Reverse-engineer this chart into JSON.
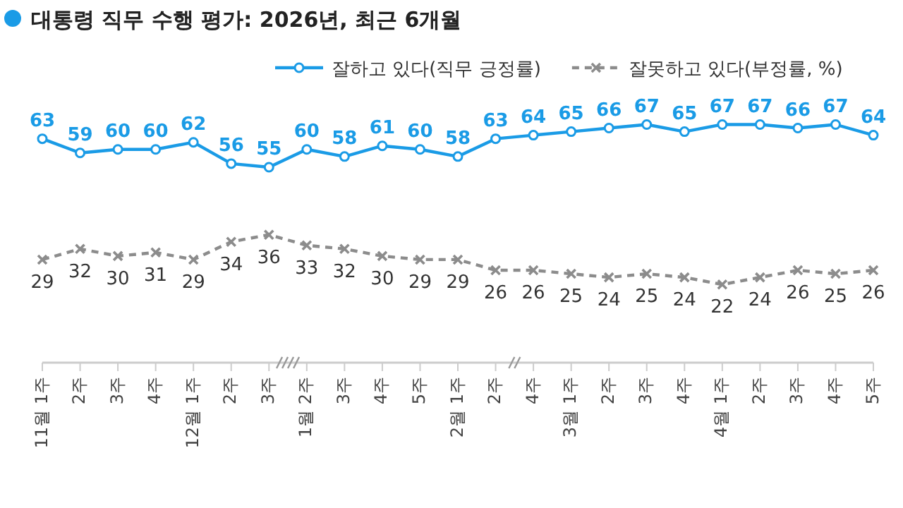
{
  "chart_data": {
    "type": "line",
    "title": "대통령 직무 수행 평가: 2026년, 최근 6개월",
    "categories": [
      "11월 1주",
      "2주",
      "3주",
      "4주",
      "12월 1주",
      "2주",
      "3주",
      "1월 2주",
      "3주",
      "4주",
      "5주",
      "2월 1주",
      "2주",
      "4주",
      "3월 1주",
      "2주",
      "3주",
      "4주",
      "4월 1주",
      "2주",
      "3주",
      "4주",
      "5주"
    ],
    "series": [
      {
        "name": "잘하고 있다(직무 긍정률)",
        "color": "#1a9be6",
        "marker": "circle",
        "line_style": "solid",
        "values": [
          63,
          59,
          60,
          60,
          62,
          56,
          55,
          60,
          58,
          61,
          60,
          58,
          63,
          64,
          65,
          66,
          67,
          65,
          67,
          67,
          66,
          67,
          64
        ]
      },
      {
        "name": "잘못하고 있다(부정률, %)",
        "color": "#8c8c8c",
        "marker": "cross",
        "line_style": "dashed",
        "values": [
          29,
          32,
          30,
          31,
          29,
          34,
          36,
          33,
          32,
          30,
          29,
          29,
          26,
          26,
          25,
          24,
          25,
          24,
          22,
          24,
          26,
          25,
          26
        ]
      }
    ],
    "legend": "top",
    "data_labels": true
  }
}
